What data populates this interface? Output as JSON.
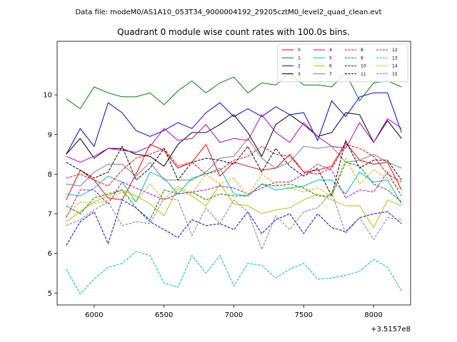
{
  "suptitle": "Data file: modeM0/AS1A10_053T34_9000004192_29205cztM0_level2_quad_clean.evt",
  "chart_data": {
    "type": "line",
    "title": "Quadrant 0 module wise count rates with 100.0s bins.",
    "xlabel": "",
    "ylabel": "",
    "x_offset_label": "+3.5157e8",
    "xlim": [
      5735,
      8265
    ],
    "ylim": [
      4.7,
      11.35
    ],
    "xticks": [
      6000,
      6500,
      7000,
      7500,
      8000
    ],
    "yticks": [
      5,
      6,
      7,
      8,
      9,
      10
    ],
    "legend_position": "top-right",
    "x": [
      5800,
      5900,
      6000,
      6100,
      6200,
      6300,
      6400,
      6500,
      6600,
      6700,
      6800,
      6900,
      7000,
      7100,
      7200,
      7300,
      7400,
      7500,
      7600,
      7700,
      7800,
      7900,
      8000,
      8100,
      8200
    ],
    "series": [
      {
        "name": "0",
        "color": "#ff0000",
        "dash": "solid",
        "values": [
          7.35,
          8.1,
          7.85,
          7.4,
          7.35,
          8.0,
          8.75,
          8.6,
          8.15,
          8.3,
          8.75,
          7.95,
          8.3,
          8.2,
          8.1,
          8.15,
          8.5,
          8.05,
          8.1,
          8.2,
          8.8,
          8.35,
          8.25,
          8.3,
          7.6
        ]
      },
      {
        "name": "1",
        "color": "#008000",
        "dash": "solid",
        "values": [
          9.9,
          9.65,
          10.2,
          10.05,
          9.95,
          9.95,
          10.05,
          9.75,
          10.1,
          10.35,
          10.05,
          10.3,
          10.45,
          10.05,
          10.3,
          10.25,
          10.55,
          10.25,
          10.25,
          10.2,
          10.55,
          9.85,
          10.3,
          10.35,
          10.2
        ]
      },
      {
        "name": "2",
        "color": "#0000ff",
        "dash": "solid",
        "values": [
          8.5,
          9.15,
          8.7,
          9.8,
          9.55,
          9.1,
          8.95,
          9.1,
          9.3,
          9.15,
          9.55,
          9.8,
          9.45,
          9.65,
          9.45,
          9.7,
          9.5,
          9.55,
          8.85,
          9.85,
          9.45,
          9.95,
          10.05,
          10.05,
          9.05
        ]
      },
      {
        "name": "3",
        "color": "#000000",
        "dash": "solid",
        "values": [
          8.5,
          8.9,
          8.4,
          8.65,
          8.65,
          8.5,
          8.45,
          8.2,
          8.75,
          9.05,
          9.05,
          9.25,
          9.5,
          9.05,
          8.45,
          9.25,
          9.5,
          9.25,
          8.95,
          9.05,
          9.55,
          9.5,
          8.8,
          9.35,
          8.9
        ]
      },
      {
        "name": "4",
        "color": "#bf00bf",
        "dash": "solid",
        "values": [
          8.45,
          8.3,
          8.45,
          8.65,
          8.6,
          8.55,
          8.7,
          9.15,
          8.85,
          8.9,
          9.25,
          8.8,
          8.9,
          8.85,
          9.5,
          9.05,
          8.8,
          9.3,
          8.95,
          8.7,
          8.65,
          9.3,
          8.8,
          9.4,
          9.15
        ]
      },
      {
        "name": "5",
        "color": "#00bfbf",
        "dash": "solid",
        "values": [
          7.5,
          7.45,
          7.65,
          7.95,
          7.8,
          7.3,
          8.05,
          7.9,
          7.5,
          7.9,
          8.0,
          8.15,
          7.5,
          7.45,
          7.75,
          7.6,
          7.65,
          7.7,
          7.85,
          7.85,
          7.5,
          8.05,
          7.8,
          7.85,
          7.25
        ]
      },
      {
        "name": "6",
        "color": "#bfbf00",
        "dash": "solid",
        "values": [
          6.8,
          7.05,
          7.3,
          7.45,
          7.6,
          7.45,
          7.25,
          6.95,
          7.65,
          7.45,
          7.2,
          7.75,
          7.25,
          7.2,
          7.0,
          7.1,
          7.15,
          7.35,
          7.5,
          7.35,
          7.2,
          7.2,
          6.65,
          7.35,
          7.2
        ]
      },
      {
        "name": "7",
        "color": "#808080",
        "dash": "solid",
        "values": [
          7.75,
          7.7,
          8.05,
          8.25,
          8.25,
          7.95,
          8.3,
          7.85,
          7.85,
          7.85,
          8.05,
          8.4,
          8.45,
          8.9,
          8.4,
          8.15,
          8.3,
          8.7,
          8.65,
          8.7,
          8.3,
          8.35,
          8.5,
          8.3,
          8.15
        ]
      },
      {
        "name": "8",
        "color": "#ff0000",
        "dash": "dashed",
        "values": [
          7.9,
          8.0,
          7.85,
          7.7,
          8.1,
          8.4,
          8.5,
          8.65,
          8.2,
          8.3,
          8.0,
          8.1,
          8.35,
          8.45,
          8.7,
          8.5,
          8.45,
          8.05,
          8.0,
          8.15,
          8.75,
          8.65,
          8.45,
          8.0,
          7.8
        ]
      },
      {
        "name": "9",
        "color": "#008000",
        "dash": "dashed",
        "values": [
          7.2,
          7.0,
          7.4,
          7.5,
          7.6,
          7.15,
          6.85,
          7.6,
          7.5,
          7.55,
          7.35,
          7.5,
          7.45,
          7.45,
          7.75,
          7.7,
          7.75,
          7.65,
          7.45,
          7.45,
          8.3,
          8.2,
          7.75,
          7.6,
          7.3
        ]
      },
      {
        "name": "10",
        "color": "#0000ff",
        "dash": "dashed",
        "values": [
          6.2,
          6.8,
          7.05,
          6.25,
          7.35,
          7.15,
          6.8,
          6.6,
          6.4,
          6.85,
          6.7,
          6.75,
          6.6,
          7.05,
          6.5,
          6.85,
          7.0,
          6.5,
          7.0,
          6.65,
          6.55,
          6.9,
          7.0,
          7.05,
          6.75
        ]
      },
      {
        "name": "11",
        "color": "#000000",
        "dash": "dashed",
        "values": [
          8.3,
          8.1,
          7.9,
          8.05,
          8.7,
          7.85,
          8.15,
          8.65,
          7.85,
          8.3,
          8.4,
          8.35,
          8.25,
          8.7,
          8.05,
          8.65,
          8.2,
          7.95,
          8.15,
          7.45,
          8.85,
          8.15,
          8.35,
          8.35,
          7.85
        ]
      },
      {
        "name": "12",
        "color": "#bf00bf",
        "dash": "dashed",
        "values": [
          6.9,
          7.6,
          7.6,
          7.25,
          7.8,
          7.65,
          7.5,
          7.35,
          7.5,
          7.55,
          7.6,
          7.7,
          7.65,
          7.5,
          7.65,
          7.8,
          7.8,
          8.0,
          8.25,
          8.1,
          7.4,
          7.6,
          7.55,
          8.05,
          7.45
        ]
      },
      {
        "name": "13",
        "color": "#00bfbf",
        "dash": "dashed",
        "values": [
          5.6,
          4.98,
          5.35,
          5.65,
          5.75,
          6.05,
          5.95,
          5.25,
          5.15,
          5.95,
          5.5,
          5.95,
          5.18,
          5.75,
          5.7,
          5.38,
          5.6,
          5.75,
          5.35,
          5.38,
          5.45,
          5.55,
          5.85,
          5.65,
          5.05
        ]
      },
      {
        "name": "14",
        "color": "#bfbf00",
        "dash": "dashed",
        "values": [
          6.95,
          7.3,
          7.25,
          7.35,
          7.55,
          7.3,
          7.75,
          7.35,
          7.7,
          7.5,
          8.0,
          7.75,
          7.9,
          7.45,
          8.0,
          7.75,
          7.65,
          7.55,
          7.65,
          7.45,
          8.4,
          7.75,
          8.1,
          7.9,
          7.6
        ]
      },
      {
        "name": "15",
        "color": "#808080",
        "dash": "dashed",
        "values": [
          6.7,
          6.85,
          7.1,
          7.3,
          6.7,
          6.8,
          6.75,
          7.4,
          7.35,
          6.45,
          7.15,
          6.75,
          7.35,
          7.05,
          6.1,
          6.95,
          6.6,
          7.05,
          7.15,
          7.55,
          6.5,
          6.9,
          6.35,
          6.9,
          6.85
        ]
      }
    ]
  }
}
